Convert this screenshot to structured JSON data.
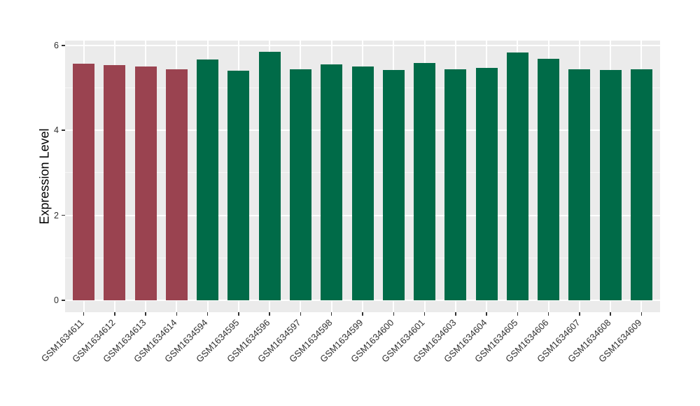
{
  "chart_data": {
    "type": "bar",
    "title": "",
    "ylabel": "Expression Level",
    "xlabel": "",
    "ylim": [
      0,
      6.12
    ],
    "yticks": [
      0,
      2,
      4,
      6
    ],
    "minor_yticks": [
      1,
      3,
      5
    ],
    "grid": "on",
    "legend": "none",
    "panel_background": "#EBEBEB",
    "grid_color": "#FFFFFF",
    "tick_mark_color": "#333333",
    "axis_text_color": "#303030",
    "categories": [
      "GSM1634611",
      "GSM1634612",
      "GSM1634613",
      "GSM1634614",
      "GSM1634594",
      "GSM1634595",
      "GSM1634596",
      "GSM1634597",
      "GSM1634598",
      "GSM1634599",
      "GSM1634600",
      "GSM1634601",
      "GSM1634603",
      "GSM1634604",
      "GSM1634605",
      "GSM1634606",
      "GSM1634607",
      "GSM1634608",
      "GSM1634609"
    ],
    "values": [
      5.57,
      5.53,
      5.51,
      5.43,
      5.67,
      5.41,
      5.85,
      5.43,
      5.55,
      5.5,
      5.42,
      5.58,
      5.44,
      5.47,
      5.84,
      5.68,
      5.43,
      5.42,
      5.44
    ],
    "groups": [
      "red",
      "red",
      "red",
      "red",
      "green",
      "green",
      "green",
      "green",
      "green",
      "green",
      "green",
      "green",
      "green",
      "green",
      "green",
      "green",
      "green",
      "green",
      "green"
    ],
    "colors": {
      "red": "#9A4350",
      "green": "#006B48"
    }
  }
}
